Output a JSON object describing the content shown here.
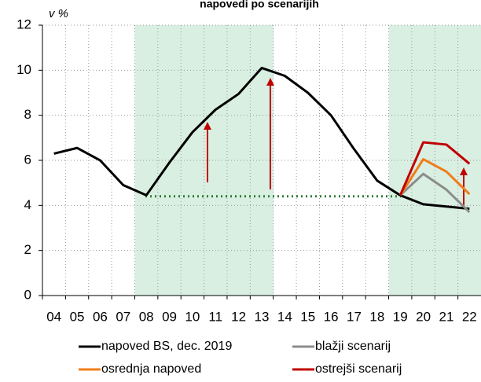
{
  "chart_data": {
    "type": "line",
    "title": "napovedi po scenarijih",
    "y_label": "v %",
    "categories": [
      "04",
      "05",
      "06",
      "07",
      "08",
      "09",
      "10",
      "11",
      "12",
      "13",
      "14",
      "15",
      "16",
      "17",
      "18",
      "19",
      "20",
      "21",
      "22"
    ],
    "series": [
      {
        "name": "napoved BS, dec. 2019",
        "color": "#000000",
        "values": [
          6.3,
          6.55,
          6.0,
          4.9,
          4.45,
          5.9,
          7.25,
          8.25,
          8.95,
          10.1,
          9.75,
          9.0,
          8.0,
          6.5,
          5.1,
          4.45,
          4.05,
          3.95,
          3.85
        ]
      },
      {
        "name": "blažji scenarij",
        "color": "#8c8c8c",
        "values": [
          null,
          null,
          null,
          null,
          null,
          null,
          null,
          null,
          null,
          null,
          null,
          null,
          null,
          null,
          null,
          4.45,
          5.4,
          4.7,
          3.7
        ]
      },
      {
        "name": "osrednja napoved",
        "color": "#f07d1a",
        "values": [
          null,
          null,
          null,
          null,
          null,
          null,
          null,
          null,
          null,
          null,
          null,
          null,
          null,
          null,
          null,
          4.45,
          6.05,
          5.5,
          4.5
        ]
      },
      {
        "name": "ostrejši scenarij",
        "color": "#c00000",
        "values": [
          null,
          null,
          null,
          null,
          null,
          null,
          null,
          null,
          null,
          null,
          null,
          null,
          null,
          null,
          null,
          4.45,
          6.8,
          6.7,
          5.85
        ]
      }
    ],
    "ylim": [
      0,
      12
    ],
    "yticks": [
      0,
      2,
      4,
      6,
      8,
      10,
      12
    ],
    "grid": true
  }
}
